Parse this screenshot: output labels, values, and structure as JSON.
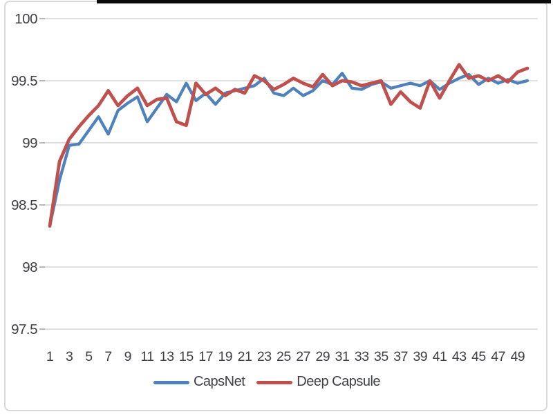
{
  "figure": {
    "description": "Accuracy per epoch line chart comparing CapsNet and Deep Capsule",
    "background_color": "#ffffff",
    "top_bar_color": "#0b0b0b",
    "frame_color": "#d9d9d9"
  },
  "chart_data": {
    "type": "line",
    "title": "",
    "xlabel": "",
    "ylabel": "",
    "x_start": 1,
    "xticks": [
      1,
      3,
      5,
      7,
      9,
      11,
      13,
      15,
      17,
      19,
      21,
      23,
      25,
      27,
      29,
      31,
      33,
      35,
      37,
      39,
      41,
      43,
      45,
      47,
      49
    ],
    "yticks": [
      97.5,
      98,
      98.5,
      99,
      99.5,
      100
    ],
    "ylim": [
      97.5,
      100
    ],
    "grid": "horizontal",
    "gridline_color": "#d6d6d6",
    "tick_color": "#a6a6a6",
    "axis_label_color": "#3f3f46",
    "legend_position": "bottom-center",
    "series": [
      {
        "name": "CapsNet",
        "color": "#4F81BD",
        "stroke_width": 4.3,
        "values": [
          98.33,
          98.7,
          98.98,
          98.99,
          99.1,
          99.21,
          99.07,
          99.26,
          99.32,
          99.37,
          99.17,
          99.28,
          99.39,
          99.33,
          99.48,
          99.34,
          99.4,
          99.31,
          99.4,
          99.42,
          99.44,
          99.46,
          99.52,
          99.4,
          99.38,
          99.44,
          99.38,
          99.42,
          99.5,
          99.47,
          99.56,
          99.44,
          99.43,
          99.47,
          99.49,
          99.44,
          99.46,
          99.48,
          99.46,
          99.5,
          99.43,
          99.48,
          99.52,
          99.55,
          99.47,
          99.52,
          99.48,
          99.51,
          99.48,
          99.5
        ]
      },
      {
        "name": "Deep Capsule",
        "color": "#C0504D",
        "stroke_width": 4.8,
        "values": [
          98.33,
          98.85,
          99.03,
          99.13,
          99.22,
          99.3,
          99.42,
          99.3,
          99.38,
          99.44,
          99.3,
          99.35,
          99.36,
          99.17,
          99.14,
          99.48,
          99.39,
          99.44,
          99.38,
          99.43,
          99.4,
          99.54,
          99.5,
          99.43,
          99.47,
          99.52,
          99.48,
          99.45,
          99.55,
          99.46,
          99.5,
          99.49,
          99.46,
          99.48,
          99.5,
          99.31,
          99.41,
          99.33,
          99.28,
          99.5,
          99.36,
          99.5,
          99.63,
          99.52,
          99.54,
          99.5,
          99.54,
          99.49,
          99.57,
          99.6
        ]
      }
    ]
  }
}
